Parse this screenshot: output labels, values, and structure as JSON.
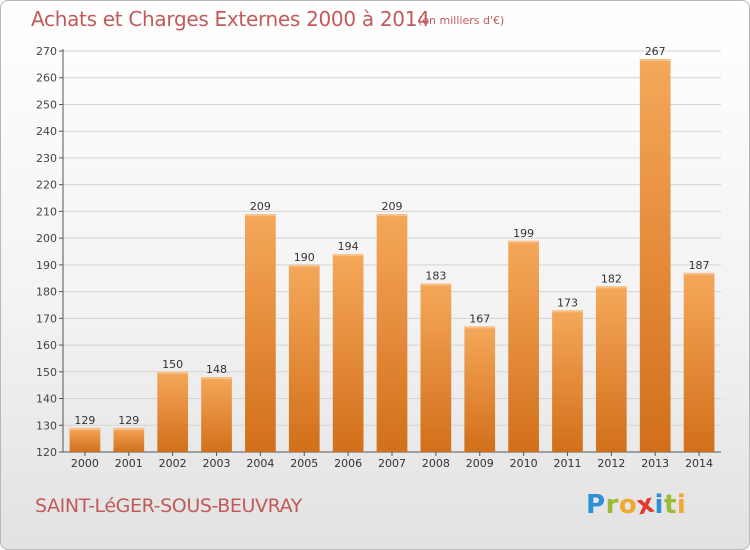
{
  "header": {
    "title": "Achats et Charges Externes 2000 à 2014",
    "subtitle": "(en milliers d'€)"
  },
  "footer": {
    "commune": "SAINT-LéGER-SOUS-BEUVRAY",
    "logo_text": "Proxiti"
  },
  "colors": {
    "bar_light": "#f5a85a",
    "bar_dark": "#d26f1a",
    "title": "#c25a5a",
    "grid": "#d4d4d4"
  },
  "chart_data": {
    "type": "bar",
    "categories": [
      "2000",
      "2001",
      "2002",
      "2003",
      "2004",
      "2005",
      "2006",
      "2007",
      "2008",
      "2009",
      "2010",
      "2011",
      "2012",
      "2013",
      "2014"
    ],
    "values": [
      129,
      129,
      150,
      148,
      209,
      190,
      194,
      209,
      183,
      167,
      199,
      173,
      182,
      267,
      187
    ],
    "title": "Achats et Charges Externes 2000 à 2014",
    "ylim": [
      120,
      270
    ],
    "yticks": [
      120,
      130,
      140,
      150,
      160,
      170,
      180,
      190,
      200,
      210,
      220,
      230,
      240,
      250,
      260,
      270
    ],
    "grid": true,
    "data_labels": true
  }
}
